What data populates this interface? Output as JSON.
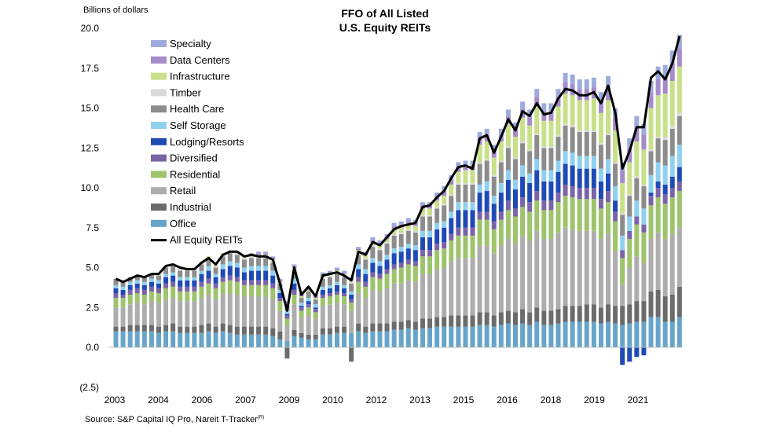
{
  "chart_data": {
    "type": "bar",
    "stacked": true,
    "title": "FFO of All Listed",
    "subtitle": "U.S. Equity REITs",
    "ylabel": "Billions of dollars",
    "ylim": [
      -2.5,
      20.0
    ],
    "yticks": [
      "20.0",
      "17.5",
      "15.0",
      "12.5",
      "10.0",
      "7.5",
      "5.0",
      "2.5",
      "0.0",
      "(2.5)"
    ],
    "xticks": [
      "2003",
      "2004",
      "2006",
      "2007",
      "2009",
      "2010",
      "2012",
      "2013",
      "2015",
      "2016",
      "2018",
      "2019",
      "2021"
    ],
    "x_start": "2003 Q1",
    "x_end": "2022 Q2",
    "legend_position": "top-left",
    "series": [
      {
        "name": "Specialty",
        "color": "#9DAADC"
      },
      {
        "name": "Data Centers",
        "color": "#A48BC9"
      },
      {
        "name": "Infrastructure",
        "color": "#C8E089"
      },
      {
        "name": "Timber",
        "color": "#D9D9D9"
      },
      {
        "name": "Health Care",
        "color": "#8C8C8C"
      },
      {
        "name": "Self Storage",
        "color": "#8FD0EE"
      },
      {
        "name": "Lodging/Resorts",
        "color": "#1F49B5"
      },
      {
        "name": "Diversified",
        "color": "#7A64A8"
      },
      {
        "name": "Residential",
        "color": "#9DC46C"
      },
      {
        "name": "Retail",
        "color": "#ADADAD"
      },
      {
        "name": "Industrial",
        "color": "#6B6B6B"
      },
      {
        "name": "Office",
        "color": "#67A4C9"
      }
    ],
    "line_series": {
      "name": "All Equity REITs",
      "color": "#000000",
      "values": [
        4.3,
        4.1,
        4.3,
        4.5,
        4.4,
        4.6,
        4.6,
        5.1,
        5.2,
        5.0,
        4.9,
        4.9,
        5.3,
        5.6,
        5.2,
        5.8,
        6.0,
        6.0,
        5.7,
        5.8,
        5.7,
        5.7,
        5.5,
        4.0,
        2.3,
        5.0,
        3.3,
        3.8,
        3.2,
        4.5,
        4.6,
        4.7,
        4.5,
        4.2,
        6.0,
        5.8,
        6.6,
        6.4,
        6.9,
        7.4,
        7.6,
        7.7,
        7.8,
        8.8,
        8.9,
        9.4,
        9.8,
        10.6,
        11.3,
        11.4,
        11.2,
        13.1,
        13.3,
        12.2,
        13.2,
        14.3,
        13.6,
        14.8,
        14.5,
        15.3,
        14.6,
        14.7,
        15.6,
        16.2,
        16.1,
        15.8,
        15.8,
        16.0,
        15.3,
        16.4,
        14.7,
        11.2,
        12.3,
        13.8,
        13.8,
        16.9,
        17.3,
        16.8,
        17.8,
        19.5
      ]
    },
    "stack_values": {
      "Office": [
        1.0,
        1.0,
        1.0,
        1.0,
        1.0,
        1.0,
        0.9,
        1.0,
        1.0,
        0.9,
        0.9,
        0.9,
        0.9,
        1.0,
        0.9,
        1.0,
        0.9,
        0.8,
        0.8,
        0.8,
        0.8,
        0.8,
        0.7,
        0.5,
        0.4,
        0.7,
        0.6,
        0.5,
        0.5,
        0.8,
        0.8,
        0.9,
        0.9,
        0.9,
        1.0,
        0.9,
        1.0,
        1.0,
        1.0,
        1.1,
        1.1,
        1.2,
        1.1,
        1.2,
        1.2,
        1.3,
        1.3,
        1.3,
        1.3,
        1.3,
        1.3,
        1.4,
        1.4,
        1.3,
        1.4,
        1.5,
        1.4,
        1.5,
        1.4,
        1.6,
        1.4,
        1.4,
        1.5,
        1.6,
        1.6,
        1.6,
        1.6,
        1.6,
        1.5,
        1.6,
        1.5,
        1.4,
        1.5,
        1.6,
        1.6,
        1.9,
        1.9,
        1.6,
        1.6,
        1.9
      ],
      "Industrial": [
        0.3,
        0.3,
        0.4,
        0.4,
        0.4,
        0.4,
        0.4,
        0.4,
        0.5,
        0.4,
        0.4,
        0.4,
        0.5,
        0.5,
        0.4,
        0.5,
        0.5,
        0.5,
        0.5,
        0.5,
        0.5,
        0.5,
        0.5,
        0.5,
        -0.7,
        0.4,
        0.3,
        0.3,
        0.3,
        0.4,
        0.4,
        0.4,
        0.4,
        -0.9,
        0.5,
        0.4,
        0.5,
        0.5,
        0.5,
        0.5,
        0.5,
        0.5,
        0.5,
        0.6,
        0.6,
        0.6,
        0.6,
        0.7,
        0.7,
        0.7,
        0.7,
        0.8,
        0.8,
        0.7,
        0.8,
        0.8,
        0.8,
        0.9,
        0.8,
        0.9,
        0.9,
        0.9,
        0.9,
        1.0,
        1.0,
        1.0,
        1.1,
        1.1,
        1.0,
        1.1,
        1.1,
        1.2,
        1.2,
        1.3,
        1.3,
        1.6,
        1.7,
        1.6,
        1.7,
        1.9
      ],
      "Retail": [
        1.2,
        1.2,
        1.3,
        1.4,
        1.3,
        1.5,
        1.5,
        1.6,
        1.6,
        1.6,
        1.6,
        1.6,
        1.7,
        1.8,
        1.7,
        1.9,
        2.0,
        2.0,
        1.9,
        1.9,
        1.9,
        1.9,
        1.8,
        1.3,
        1.0,
        1.6,
        1.0,
        1.2,
        1.0,
        1.4,
        1.5,
        1.5,
        1.4,
        1.4,
        1.9,
        1.8,
        2.1,
        2.0,
        2.2,
        2.4,
        2.4,
        2.5,
        2.5,
        2.8,
        2.8,
        3.0,
        3.1,
        3.4,
        3.6,
        3.6,
        3.6,
        4.2,
        4.2,
        3.9,
        4.2,
        4.5,
        4.3,
        4.6,
        4.5,
        4.8,
        4.5,
        4.5,
        4.8,
        4.9,
        4.8,
        4.7,
        4.6,
        4.6,
        4.3,
        4.4,
        3.4,
        1.3,
        2.3,
        2.8,
        2.4,
        3.3,
        3.6,
        3.6,
        3.8,
        3.7
      ],
      "Residential": [
        0.6,
        0.6,
        0.6,
        0.6,
        0.6,
        0.6,
        0.6,
        0.7,
        0.7,
        0.6,
        0.6,
        0.6,
        0.7,
        0.7,
        0.7,
        0.7,
        0.8,
        0.8,
        0.7,
        0.7,
        0.7,
        0.7,
        0.7,
        0.6,
        0.4,
        0.6,
        0.4,
        0.5,
        0.4,
        0.5,
        0.5,
        0.5,
        0.5,
        0.5,
        0.7,
        0.7,
        0.8,
        0.8,
        0.9,
        0.9,
        1.0,
        1.0,
        1.0,
        1.1,
        1.1,
        1.2,
        1.2,
        1.3,
        1.4,
        1.4,
        1.4,
        1.6,
        1.6,
        1.5,
        1.6,
        1.8,
        1.7,
        1.8,
        1.8,
        1.9,
        1.8,
        1.8,
        1.9,
        2.0,
        2.0,
        2.0,
        2.0,
        2.0,
        1.9,
        2.0,
        1.9,
        1.7,
        1.8,
        2.0,
        1.9,
        2.1,
        2.2,
        2.2,
        2.3,
        2.3
      ],
      "Diversified": [
        0.3,
        0.2,
        0.3,
        0.3,
        0.3,
        0.3,
        0.3,
        0.3,
        0.3,
        0.3,
        0.3,
        0.3,
        0.3,
        0.3,
        0.3,
        0.3,
        0.3,
        0.3,
        0.3,
        0.3,
        0.3,
        0.3,
        0.3,
        0.2,
        0.2,
        0.3,
        0.2,
        0.2,
        0.2,
        0.2,
        0.2,
        0.2,
        0.2,
        0.2,
        0.3,
        0.3,
        0.3,
        0.3,
        0.3,
        0.3,
        0.3,
        0.3,
        0.3,
        0.4,
        0.4,
        0.4,
        0.4,
        0.4,
        0.5,
        0.5,
        0.5,
        0.5,
        0.5,
        0.5,
        0.5,
        0.6,
        0.5,
        0.6,
        0.6,
        0.6,
        0.6,
        0.6,
        0.6,
        0.7,
        0.7,
        0.7,
        0.7,
        0.7,
        0.6,
        0.7,
        0.6,
        0.5,
        0.5,
        0.5,
        0.5,
        0.6,
        0.6,
        0.6,
        0.6,
        0.6
      ],
      "Lodging/Resorts": [
        0.3,
        0.3,
        0.3,
        0.3,
        0.3,
        0.3,
        0.3,
        0.4,
        0.4,
        0.4,
        0.4,
        0.4,
        0.5,
        0.5,
        0.4,
        0.5,
        0.6,
        0.6,
        0.5,
        0.6,
        0.6,
        0.6,
        0.5,
        0.3,
        0.1,
        0.4,
        0.1,
        0.2,
        0.1,
        0.3,
        0.3,
        0.4,
        0.3,
        0.3,
        0.5,
        0.5,
        0.6,
        0.5,
        0.6,
        0.7,
        0.7,
        0.7,
        0.7,
        0.8,
        0.8,
        0.9,
        0.9,
        1.0,
        1.1,
        1.1,
        1.1,
        1.2,
        1.3,
        1.1,
        1.2,
        1.3,
        1.2,
        1.3,
        1.2,
        1.3,
        1.2,
        1.2,
        1.3,
        1.3,
        1.3,
        1.2,
        1.2,
        1.2,
        1.1,
        1.1,
        0.7,
        -1.1,
        -0.9,
        -0.6,
        -0.5,
        0.2,
        0.4,
        0.6,
        0.7,
        0.9
      ],
      "Self Storage": [
        0.2,
        0.2,
        0.2,
        0.2,
        0.2,
        0.2,
        0.2,
        0.2,
        0.2,
        0.2,
        0.2,
        0.2,
        0.2,
        0.3,
        0.2,
        0.3,
        0.3,
        0.3,
        0.3,
        0.3,
        0.3,
        0.3,
        0.3,
        0.2,
        0.2,
        0.3,
        0.2,
        0.2,
        0.2,
        0.2,
        0.2,
        0.2,
        0.2,
        0.2,
        0.3,
        0.3,
        0.3,
        0.3,
        0.3,
        0.3,
        0.3,
        0.3,
        0.3,
        0.4,
        0.4,
        0.4,
        0.4,
        0.4,
        0.5,
        0.5,
        0.5,
        0.5,
        0.6,
        0.5,
        0.6,
        0.6,
        0.6,
        0.7,
        0.6,
        0.7,
        0.7,
        0.7,
        0.7,
        0.8,
        0.8,
        0.8,
        0.8,
        0.8,
        0.8,
        0.9,
        0.9,
        0.9,
        0.9,
        1.0,
        1.0,
        1.1,
        1.2,
        1.2,
        1.3,
        1.4
      ],
      "Health Care": [
        0.4,
        0.3,
        0.3,
        0.3,
        0.3,
        0.3,
        0.3,
        0.4,
        0.4,
        0.4,
        0.4,
        0.4,
        0.4,
        0.4,
        0.4,
        0.5,
        0.5,
        0.5,
        0.5,
        0.5,
        0.5,
        0.5,
        0.5,
        0.4,
        0.3,
        0.5,
        0.3,
        0.4,
        0.3,
        0.5,
        0.5,
        0.5,
        0.5,
        0.5,
        0.6,
        0.6,
        0.7,
        0.7,
        0.7,
        0.8,
        0.8,
        0.8,
        0.8,
        0.9,
        0.9,
        0.9,
        1.0,
        1.0,
        1.1,
        1.1,
        1.1,
        1.3,
        1.3,
        1.2,
        1.3,
        1.4,
        1.3,
        1.4,
        1.4,
        1.5,
        1.4,
        1.4,
        1.5,
        1.6,
        1.6,
        1.5,
        1.5,
        1.5,
        1.5,
        1.5,
        1.4,
        1.3,
        1.3,
        1.4,
        1.4,
        1.5,
        1.5,
        1.6,
        1.7,
        1.8
      ],
      "Timber": [
        0.0,
        0.0,
        0.0,
        0.0,
        0.0,
        0.0,
        0.1,
        0.1,
        0.1,
        0.1,
        0.1,
        0.1,
        0.1,
        0.1,
        0.1,
        0.1,
        0.1,
        0.1,
        0.1,
        0.1,
        0.1,
        0.1,
        0.1,
        0.0,
        0.0,
        0.1,
        0.0,
        0.0,
        0.0,
        0.1,
        0.1,
        0.1,
        0.1,
        0.1,
        0.1,
        0.1,
        0.1,
        0.1,
        0.1,
        0.1,
        0.1,
        0.1,
        0.1,
        0.1,
        0.1,
        0.1,
        0.1,
        0.1,
        0.1,
        0.1,
        0.1,
        0.1,
        0.1,
        0.1,
        0.1,
        0.1,
        0.1,
        0.1,
        0.1,
        0.1,
        0.1,
        0.1,
        0.1,
        0.1,
        0.1,
        0.1,
        0.1,
        0.1,
        0.1,
        0.1,
        0.1,
        0.1,
        0.1,
        0.1,
        0.1,
        0.1,
        0.1,
        0.2,
        0.2,
        0.2
      ],
      "Infrastructure": [
        0.0,
        0.0,
        0.0,
        0.0,
        0.0,
        0.0,
        0.0,
        0.0,
        0.0,
        0.1,
        0.1,
        0.1,
        0.1,
        0.1,
        0.1,
        0.1,
        0.1,
        0.1,
        0.1,
        0.1,
        0.1,
        0.1,
        0.1,
        0.1,
        0.1,
        0.1,
        0.1,
        0.1,
        0.1,
        0.1,
        0.1,
        0.1,
        0.1,
        0.1,
        0.2,
        0.2,
        0.2,
        0.2,
        0.2,
        0.3,
        0.3,
        0.3,
        0.3,
        0.4,
        0.4,
        0.4,
        0.5,
        0.6,
        0.7,
        0.8,
        0.8,
        1.1,
        1.1,
        1.1,
        1.2,
        1.4,
        1.3,
        1.5,
        1.5,
        1.7,
        1.6,
        1.6,
        1.8,
        1.9,
        1.9,
        1.9,
        1.9,
        2.0,
        1.9,
        2.1,
        2.0,
        1.9,
        2.0,
        2.2,
        2.2,
        2.6,
        2.6,
        2.7,
        2.8,
        2.9
      ],
      "Data Centers": [
        0.0,
        0.0,
        0.0,
        0.0,
        0.0,
        0.0,
        0.0,
        0.0,
        0.0,
        0.0,
        0.0,
        0.0,
        0.0,
        0.0,
        0.0,
        0.0,
        0.0,
        0.0,
        0.0,
        0.0,
        0.1,
        0.1,
        0.1,
        0.1,
        0.1,
        0.1,
        0.1,
        0.1,
        0.1,
        0.1,
        0.1,
        0.1,
        0.1,
        0.1,
        0.1,
        0.1,
        0.1,
        0.1,
        0.1,
        0.2,
        0.2,
        0.2,
        0.2,
        0.2,
        0.2,
        0.2,
        0.3,
        0.3,
        0.3,
        0.3,
        0.3,
        0.4,
        0.4,
        0.4,
        0.4,
        0.5,
        0.5,
        0.5,
        0.5,
        0.6,
        0.6,
        0.6,
        0.6,
        0.7,
        0.7,
        0.7,
        0.7,
        0.7,
        0.7,
        0.8,
        0.8,
        0.8,
        0.9,
        0.9,
        0.9,
        1.0,
        1.0,
        1.0,
        1.1,
        1.1
      ],
      "Specialty": [
        0.0,
        0.0,
        0.0,
        0.0,
        0.0,
        0.0,
        0.0,
        0.0,
        0.0,
        0.0,
        0.0,
        0.0,
        0.0,
        0.0,
        0.0,
        0.0,
        0.0,
        0.0,
        0.0,
        0.1,
        0.1,
        0.1,
        0.1,
        0.1,
        0.1,
        0.1,
        0.1,
        0.1,
        0.1,
        0.1,
        0.1,
        0.1,
        0.1,
        0.1,
        0.1,
        0.1,
        0.2,
        0.2,
        0.2,
        0.2,
        0.2,
        0.2,
        0.2,
        0.2,
        0.2,
        0.3,
        0.3,
        0.3,
        0.3,
        0.3,
        0.3,
        0.4,
        0.4,
        0.4,
        0.4,
        0.4,
        0.4,
        0.5,
        0.5,
        0.5,
        0.5,
        0.5,
        0.5,
        0.6,
        0.6,
        0.6,
        0.6,
        0.6,
        0.6,
        0.7,
        0.6,
        0.5,
        0.6,
        0.7,
        0.7,
        0.7,
        0.8,
        0.8,
        0.8,
        0.9
      ]
    }
  },
  "source": "Source: S&P Capital IQ Pro, Nareit T-Tracker",
  "source_mark": "(R)"
}
